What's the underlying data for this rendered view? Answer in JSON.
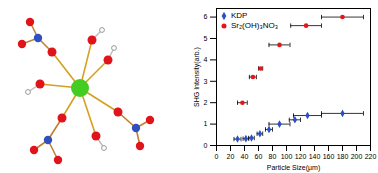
{
  "chart_data": {
    "type": "scatter",
    "xlabel": "Particle Size(μm)",
    "ylabel": "SHG Intensity(arb.)",
    "xlim": [
      0,
      220
    ],
    "xticks": [
      0,
      20,
      40,
      60,
      80,
      100,
      120,
      140,
      160,
      180,
      200,
      220
    ],
    "ylim": [
      0,
      6.4
    ],
    "yticks": [
      0,
      1,
      2,
      3,
      4,
      5,
      6
    ],
    "legend": "top-left",
    "series": [
      {
        "name": "KDP",
        "color": "#2b4fc4",
        "marker": "diamond",
        "x": [
          30,
          42,
          50,
          62,
          75,
          90,
          112,
          130,
          180
        ],
        "values": [
          0.3,
          0.32,
          0.35,
          0.55,
          0.75,
          1.0,
          1.2,
          1.4,
          1.5
        ],
        "xerr": [
          5,
          4,
          4,
          4,
          5,
          15,
          8,
          20,
          30
        ]
      },
      {
        "name": "Sr₂(OH)₃NO₃",
        "color": "#e3161c",
        "marker": "circle",
        "x": [
          37,
          52,
          63,
          90,
          128,
          180
        ],
        "values": [
          2.0,
          3.2,
          3.6,
          4.7,
          5.6,
          6.0
        ],
        "xerr": [
          7,
          5,
          3,
          15,
          22,
          30
        ]
      }
    ]
  }
}
